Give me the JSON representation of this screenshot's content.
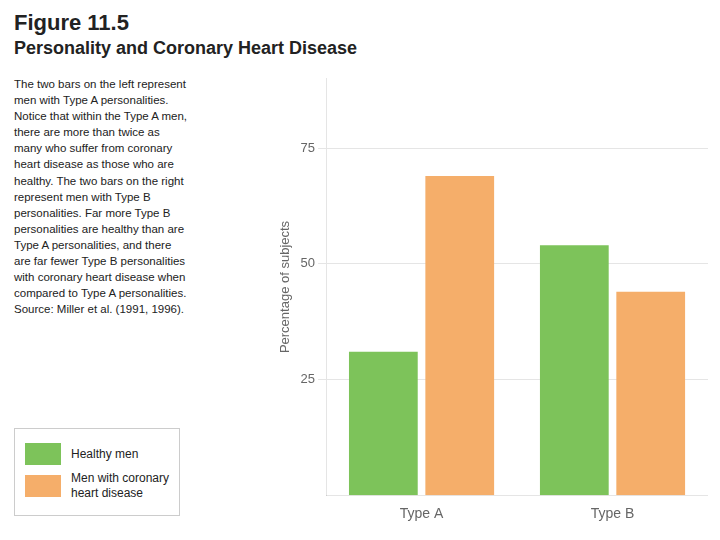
{
  "chart_data": {
    "type": "bar",
    "title": "Figure 11.5",
    "subtitle": "Personality and Coronary Heart Disease",
    "annotations": [
      "The two bars on the left represent\nmen with Type A personalities.\nNotice that within the Type A men,\nthere are more than twice as\nmany who suffer from coronary\nheart disease as those who are\nhealthy. The two bars on the right\nrepresent men with Type B\npersonalities. Far more Type B\npersonalities are healthy than are\nType A personalities, and there\nare far fewer Type B personalities\nwith coronary heart disease when\ncompared to Type A personalities.\nSource: Miller et al. (1991, 1996)."
    ],
    "categories": [
      "Type A",
      "Type B"
    ],
    "series": [
      {
        "name": "Healthy men",
        "color": "#7dc35a",
        "values": [
          31,
          54
        ]
      },
      {
        "name": "Men with coronary\nheart disease",
        "color": "#f5ae6a",
        "values": [
          69,
          44
        ]
      }
    ],
    "ylabel": "Percentage of subjects",
    "ylim": [
      0,
      90
    ],
    "yticks": [
      25,
      50,
      75
    ],
    "grid": true,
    "legend": "lower left"
  }
}
